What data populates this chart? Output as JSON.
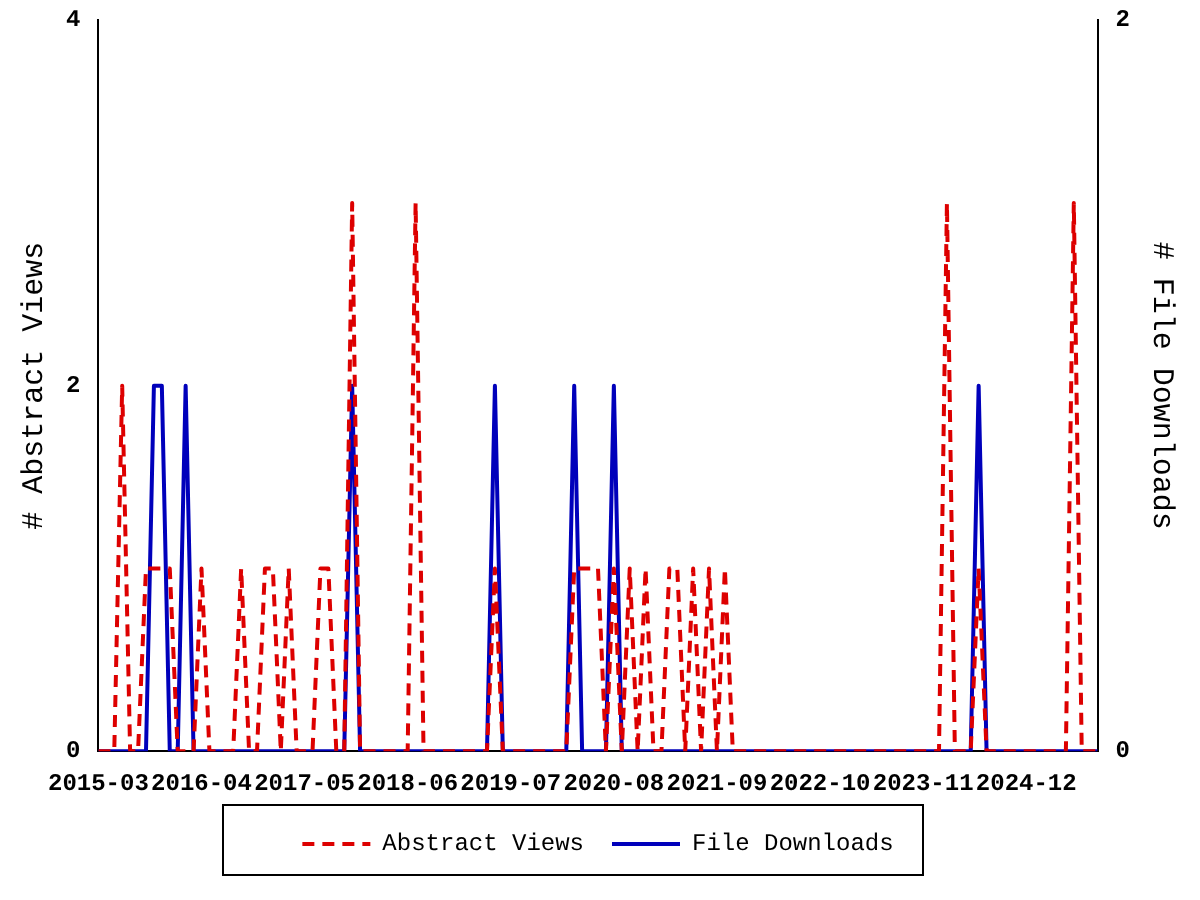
{
  "chart_data": {
    "type": "line",
    "ylabel": "# Abstract Views",
    "y2label": "# File Downloads",
    "x": [
      "2015-03",
      "2015-04",
      "2015-05",
      "2015-06",
      "2015-07",
      "2015-08",
      "2015-09",
      "2015-10",
      "2015-11",
      "2015-12",
      "2016-01",
      "2016-02",
      "2016-03",
      "2016-04",
      "2016-05",
      "2016-06",
      "2016-07",
      "2016-08",
      "2016-09",
      "2016-10",
      "2016-11",
      "2016-12",
      "2017-01",
      "2017-02",
      "2017-03",
      "2017-04",
      "2017-05",
      "2017-06",
      "2017-07",
      "2017-08",
      "2017-09",
      "2017-10",
      "2017-11",
      "2017-12",
      "2018-01",
      "2018-02",
      "2018-03",
      "2018-04",
      "2018-05",
      "2018-06",
      "2018-07",
      "2018-08",
      "2018-09",
      "2018-10",
      "2018-11",
      "2018-12",
      "2019-01",
      "2019-02",
      "2019-03",
      "2019-04",
      "2019-05",
      "2019-06",
      "2019-07",
      "2019-08",
      "2019-09",
      "2019-10",
      "2019-11",
      "2019-12",
      "2020-01",
      "2020-02",
      "2020-03",
      "2020-04",
      "2020-05",
      "2020-06",
      "2020-07",
      "2020-08",
      "2020-09",
      "2020-10",
      "2020-11",
      "2020-12",
      "2021-01",
      "2021-02",
      "2021-03",
      "2021-04",
      "2021-05",
      "2021-06",
      "2021-07",
      "2021-08",
      "2021-09",
      "2021-10",
      "2021-11",
      "2021-12",
      "2022-01",
      "2022-02",
      "2022-03",
      "2022-04",
      "2022-05",
      "2022-06",
      "2022-07",
      "2022-08",
      "2022-09",
      "2022-10",
      "2022-11",
      "2022-12",
      "2023-01",
      "2023-02",
      "2023-03",
      "2023-04",
      "2023-05",
      "2023-06",
      "2023-07",
      "2023-08",
      "2023-09",
      "2023-10",
      "2023-11",
      "2023-12",
      "2024-01",
      "2024-02",
      "2024-03",
      "2024-04",
      "2024-05",
      "2024-06",
      "2024-07",
      "2024-08",
      "2024-09",
      "2024-10",
      "2024-11",
      "2024-12",
      "2025-01",
      "2025-02",
      "2025-03",
      "2025-04",
      "2025-05",
      "2025-06",
      "2025-07",
      "2025-08",
      "2025-09"
    ],
    "series": [
      {
        "name": "Abstract Views",
        "color": "#dd0000",
        "line_style": "dashed",
        "values": [
          0,
          0,
          0,
          2,
          0,
          0,
          1,
          1,
          1,
          1,
          0,
          0,
          0,
          1,
          0,
          0,
          0,
          0,
          1,
          0,
          0,
          1,
          1,
          0,
          1,
          0,
          0,
          0,
          1,
          1,
          0,
          0,
          3,
          0,
          0,
          0,
          0,
          0,
          0,
          0,
          3,
          0,
          0,
          0,
          0,
          0,
          0,
          0,
          0,
          0,
          1,
          0,
          0,
          0,
          0,
          0,
          0,
          0,
          0,
          0,
          1,
          1,
          1,
          1,
          0,
          1,
          0,
          1,
          0,
          1,
          0,
          0,
          1,
          1,
          0,
          1,
          0,
          1,
          0,
          1,
          0,
          0,
          0,
          0,
          0,
          0,
          0,
          0,
          0,
          0,
          0,
          0,
          0,
          0,
          0,
          0,
          0,
          0,
          0,
          0,
          0,
          0,
          0,
          0,
          0,
          0,
          0,
          3,
          0,
          0,
          0,
          1,
          0,
          0,
          0,
          0,
          0,
          0,
          0,
          0,
          0,
          0,
          0,
          3,
          0,
          0,
          0
        ]
      },
      {
        "name": "File Downloads",
        "color": "#0000bb",
        "line_style": "solid",
        "axis": "y2",
        "values": [
          0,
          0,
          0,
          0,
          0,
          0,
          0,
          1,
          1,
          0,
          0,
          1,
          0,
          0,
          0,
          0,
          0,
          0,
          0,
          0,
          0,
          0,
          0,
          0,
          0,
          0,
          0,
          0,
          0,
          0,
          0,
          0,
          1,
          0,
          0,
          0,
          0,
          0,
          0,
          0,
          0,
          0,
          0,
          0,
          0,
          0,
          0,
          0,
          0,
          0,
          1,
          0,
          0,
          0,
          0,
          0,
          0,
          0,
          0,
          0,
          1,
          0,
          0,
          0,
          0,
          1,
          0,
          0,
          0,
          0,
          0,
          0,
          0,
          0,
          0,
          0,
          0,
          0,
          0,
          0,
          0,
          0,
          0,
          0,
          0,
          0,
          0,
          0,
          0,
          0,
          0,
          0,
          0,
          0,
          0,
          0,
          0,
          0,
          0,
          0,
          0,
          0,
          0,
          0,
          0,
          0,
          0,
          0,
          0,
          0,
          0,
          1,
          0,
          0,
          0,
          0,
          0,
          0,
          0,
          0,
          0,
          0,
          0,
          0,
          0,
          0,
          0
        ]
      }
    ],
    "xlim": [
      "2015-03",
      "2025-09"
    ],
    "xticks": [
      "2015-03",
      "2016-04",
      "2017-05",
      "2018-06",
      "2019-07",
      "2020-08",
      "2021-09",
      "2022-10",
      "2023-11",
      "2024-12"
    ],
    "ylim": [
      0,
      4
    ],
    "yticks": [
      0,
      2,
      4
    ],
    "y2lim": [
      0,
      2
    ],
    "y2ticks": [
      0,
      2
    ],
    "grid": false,
    "legend": "bottom",
    "marker": "none"
  }
}
